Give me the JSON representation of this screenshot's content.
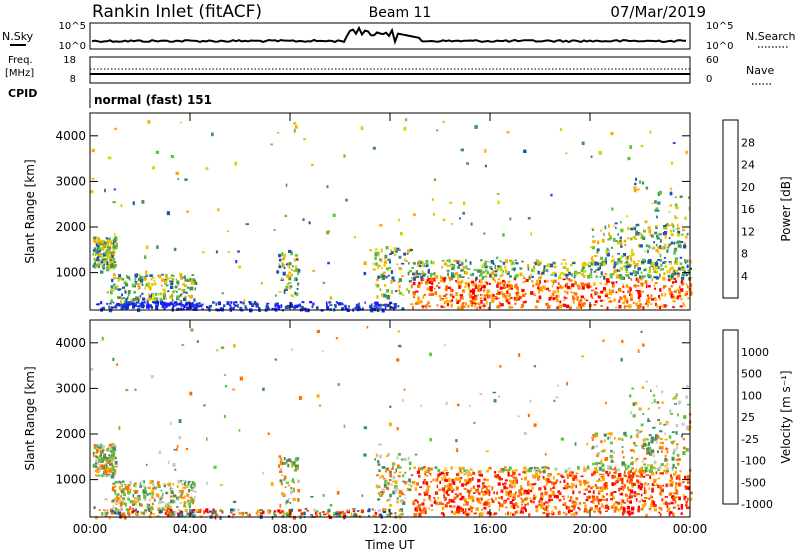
{
  "header": {
    "station": "Rankin Inlet (fitACF)",
    "beam": "Beam 11",
    "date": "07/Mar/2019"
  },
  "noise_panel": {
    "left_label": "N.Sky",
    "right_label": "N.Search",
    "left_ticks": [
      "10^5",
      "10^0"
    ],
    "right_ticks": [
      "10^5",
      "10^0"
    ]
  },
  "freq_panel": {
    "left_label_1": "Freq.",
    "left_label_2": "[MHz]",
    "right_label": "Nave",
    "left_ticks": [
      "18",
      "8"
    ],
    "right_ticks": [
      "60",
      "0"
    ]
  },
  "cpid_panel": {
    "label": "CPID",
    "text": "normal (fast) 151"
  },
  "chart_data": [
    {
      "type": "heatmap",
      "name": "power-panel",
      "ylabel": "Slant Range [km]",
      "xlabel": "",
      "ylim": [
        180,
        4500
      ],
      "xlim_hours": [
        0,
        24
      ],
      "yticks": [
        "1000",
        "2000",
        "3000",
        "4000"
      ],
      "yticks_values": [
        1000,
        2000,
        3000,
        4000
      ],
      "colorbar": {
        "label": "Power [dB]",
        "ticks": [
          "28",
          "24",
          "20",
          "16",
          "12",
          "8",
          "4"
        ],
        "colors": [
          "#ff0000",
          "#ff7000",
          "#ffaa00",
          "#d4d400",
          "#60c040",
          "#3f8f5f",
          "#2050b0",
          "#1a1aff"
        ]
      }
    },
    {
      "type": "heatmap",
      "name": "velocity-panel",
      "ylabel": "Slant Range [km]",
      "xlabel": "Time UT",
      "ylim": [
        180,
        4500
      ],
      "xlim_hours": [
        0,
        24
      ],
      "yticks": [
        "1000",
        "2000",
        "3000",
        "4000"
      ],
      "yticks_values": [
        1000,
        2000,
        3000,
        4000
      ],
      "xticks": [
        "00:00",
        "04:00",
        "08:00",
        "12:00",
        "16:00",
        "20:00",
        "00:00"
      ],
      "colorbar": {
        "label": "Velocity [m s⁻¹]",
        "ticks": [
          "1000",
          "500",
          "100",
          "25",
          "-25",
          "-100",
          "-500",
          "-1000"
        ],
        "colors": [
          "#2050b0",
          "#3f8f5f",
          "#60c040",
          "#c8c8c8",
          "#ffaa00",
          "#ff7000",
          "#ff3000",
          "#ff0000"
        ]
      }
    }
  ]
}
